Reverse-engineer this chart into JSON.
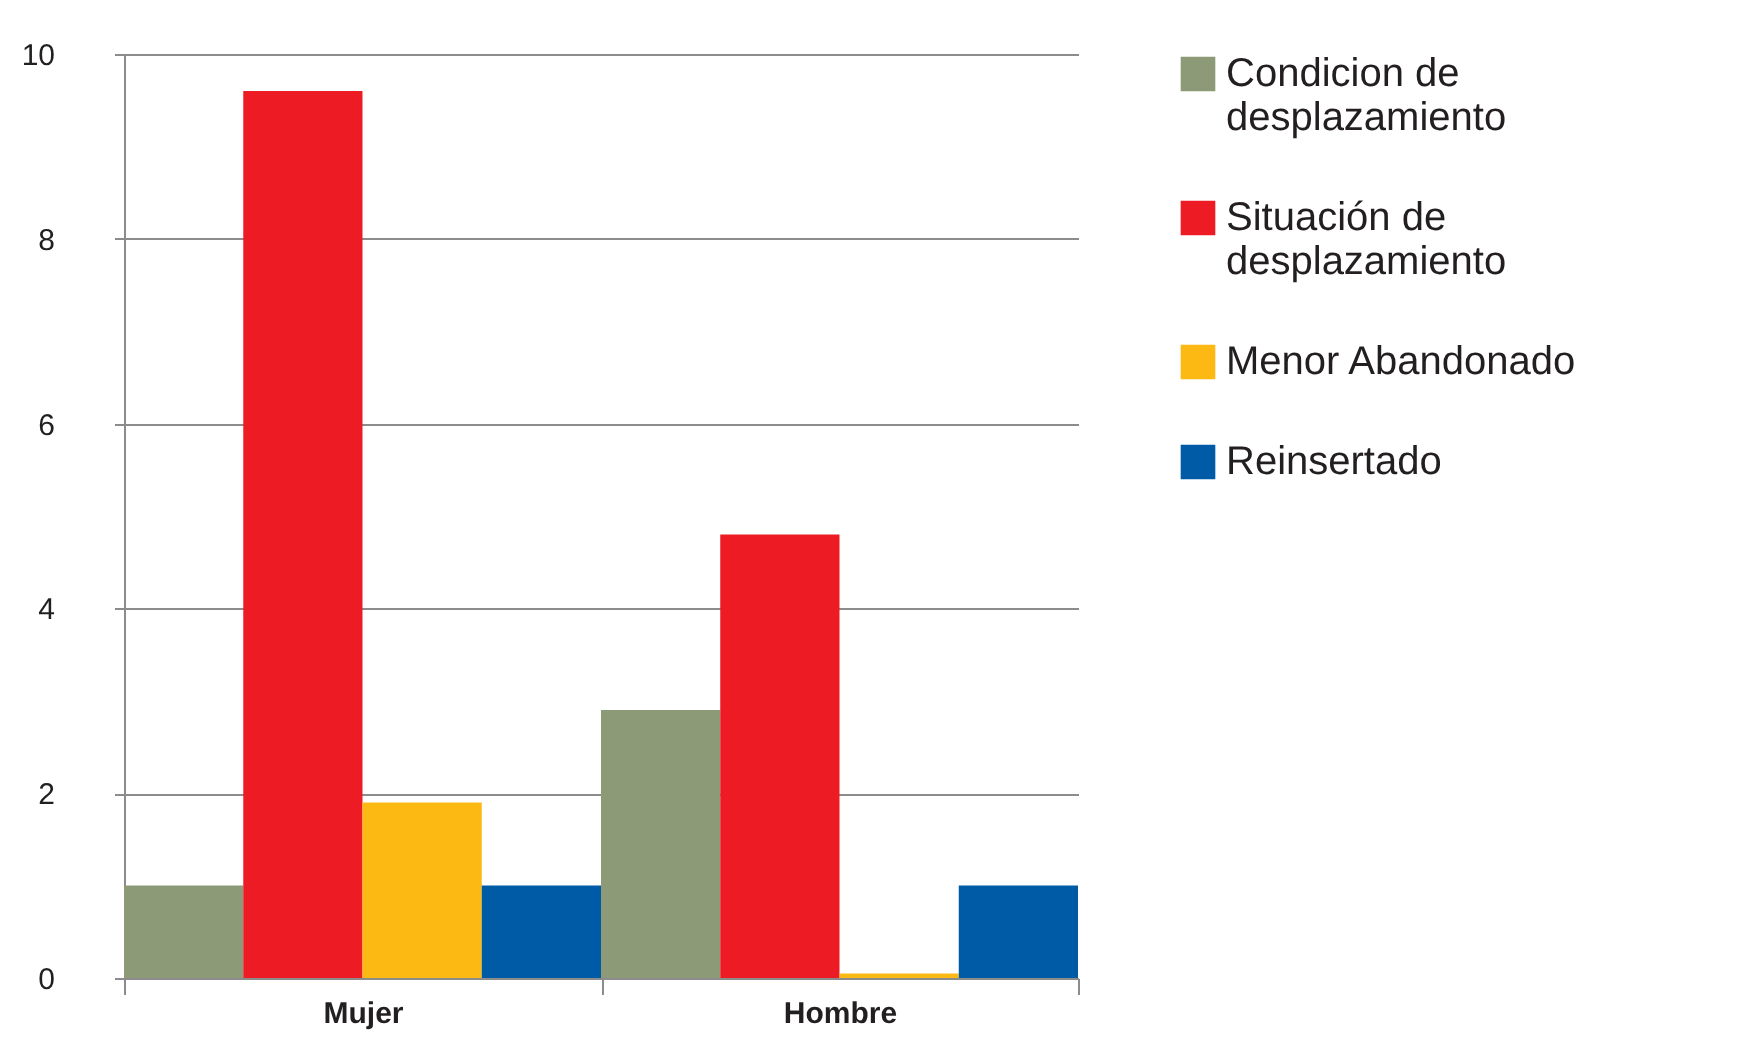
{
  "chart_data": {
    "type": "bar",
    "categories": [
      "Mujer",
      "Hombre"
    ],
    "series": [
      {
        "name": "Condicion de desplazamiento",
        "color": "#8c9a78",
        "values": [
          1.0,
          2.9
        ]
      },
      {
        "name": "Situación de desplazamiento",
        "color": "#ed1c24",
        "values": [
          9.6,
          4.8
        ]
      },
      {
        "name": "Menor Abandonado",
        "color": "#fdb913",
        "values": [
          1.9,
          0.05
        ]
      },
      {
        "name": "Reinsertado",
        "color": "#005ba6",
        "values": [
          1.0,
          1.0
        ]
      }
    ],
    "ylim": [
      0,
      10
    ],
    "yticks": [
      0,
      2,
      4,
      6,
      8,
      10
    ],
    "grid": "y",
    "legend": "right"
  }
}
